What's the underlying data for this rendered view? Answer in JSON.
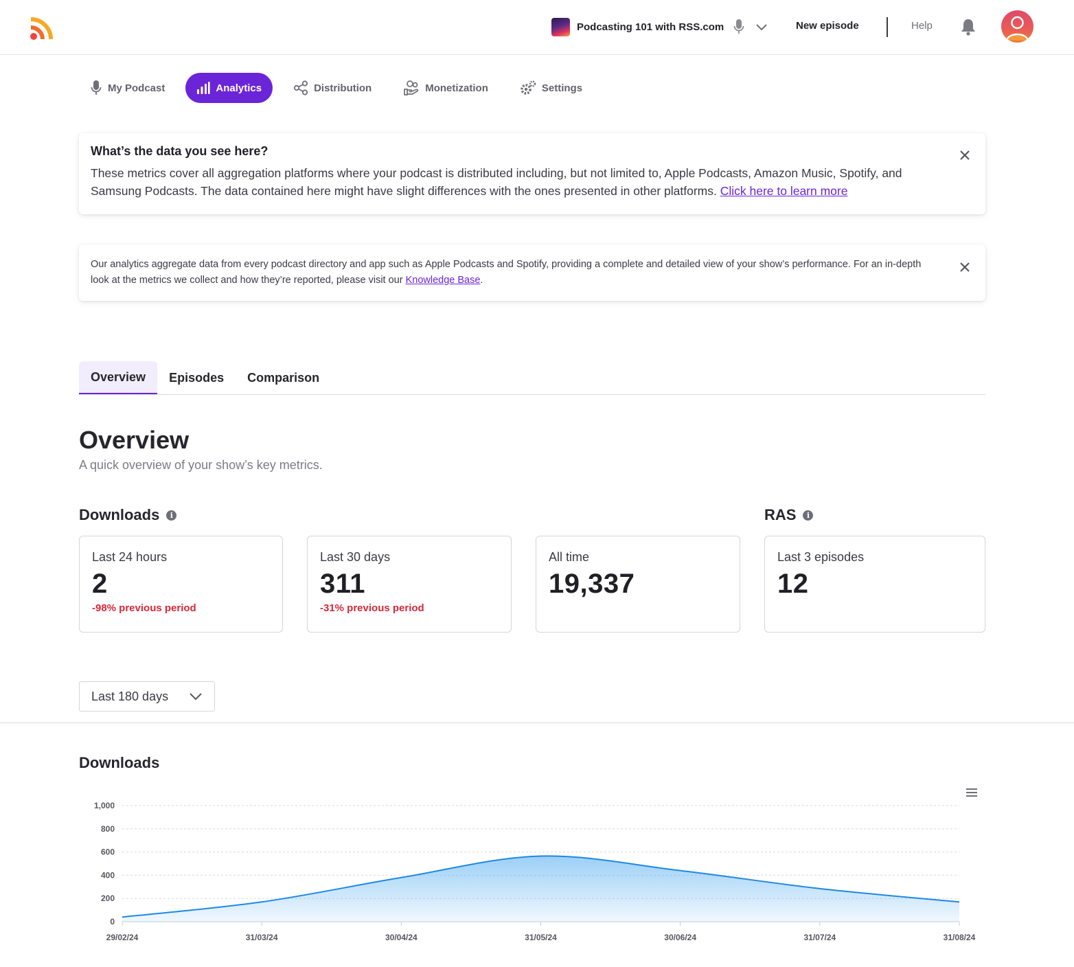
{
  "header": {
    "podcast_name": "Podcasting 101 with RSS.com",
    "new_episode": "New episode",
    "help": "Help"
  },
  "nav": {
    "items": [
      {
        "label": "My Podcast",
        "icon": "microphone-icon"
      },
      {
        "label": "Analytics",
        "icon": "bar-chart-icon",
        "active": true
      },
      {
        "label": "Distribution",
        "icon": "share-icon"
      },
      {
        "label": "Monetization",
        "icon": "hand-coin-icon"
      },
      {
        "label": "Settings",
        "icon": "gear-icon"
      }
    ]
  },
  "notice1": {
    "title": "What’s the data you see here?",
    "body": "These metrics cover all aggregation platforms where your podcast is distributed including, but not limited to, Apple Podcasts, Amazon Music, Spotify, and Samsung Podcasts. The data contained here might have slight differences with the ones presented in other platforms. ",
    "link": "Click here to learn more"
  },
  "notice2": {
    "body": "Our analytics aggregate data from every podcast directory and app such as Apple Podcasts and Spotify, providing a complete and detailed view of your show’s performance. For an in-depth look at the metrics we collect and how they’re reported, please visit our ",
    "link": "Knowledge Base",
    "end": "."
  },
  "tabs": [
    {
      "label": "Overview",
      "active": true
    },
    {
      "label": "Episodes"
    },
    {
      "label": "Comparison"
    }
  ],
  "overview": {
    "title": "Overview",
    "subtitle": "A quick overview of your show’s key metrics."
  },
  "downloads_section": {
    "title": "Downloads"
  },
  "ras_section": {
    "title": "RAS"
  },
  "cards": [
    {
      "label": "Last 24 hours",
      "value": "2",
      "change": "-98% previous period"
    },
    {
      "label": "Last 30 days",
      "value": "311",
      "change": "-31% previous period"
    },
    {
      "label": "All time",
      "value": "19,337",
      "change": ""
    },
    {
      "label": "Last 3 episodes",
      "value": "12",
      "change": ""
    }
  ],
  "range": {
    "selected": "Last 180 days"
  },
  "chart_title": "Downloads",
  "colors": {
    "accent": "#6b25d8",
    "negative": "#d6283a",
    "series": "#1e88e5"
  },
  "chart_data": {
    "type": "area",
    "title": "",
    "xlabel": "",
    "ylabel": "",
    "ylim": [
      0,
      1000
    ],
    "yticks": [
      "0",
      "200",
      "400",
      "600",
      "800",
      "1,000"
    ],
    "grid": true,
    "x": [
      "29/02/24",
      "31/03/24",
      "30/04/24",
      "31/05/24",
      "30/06/24",
      "31/07/24",
      "31/08/24"
    ],
    "series": [
      {
        "values": [
          40,
          170,
          380,
          565,
          440,
          285,
          170
        ]
      }
    ]
  }
}
